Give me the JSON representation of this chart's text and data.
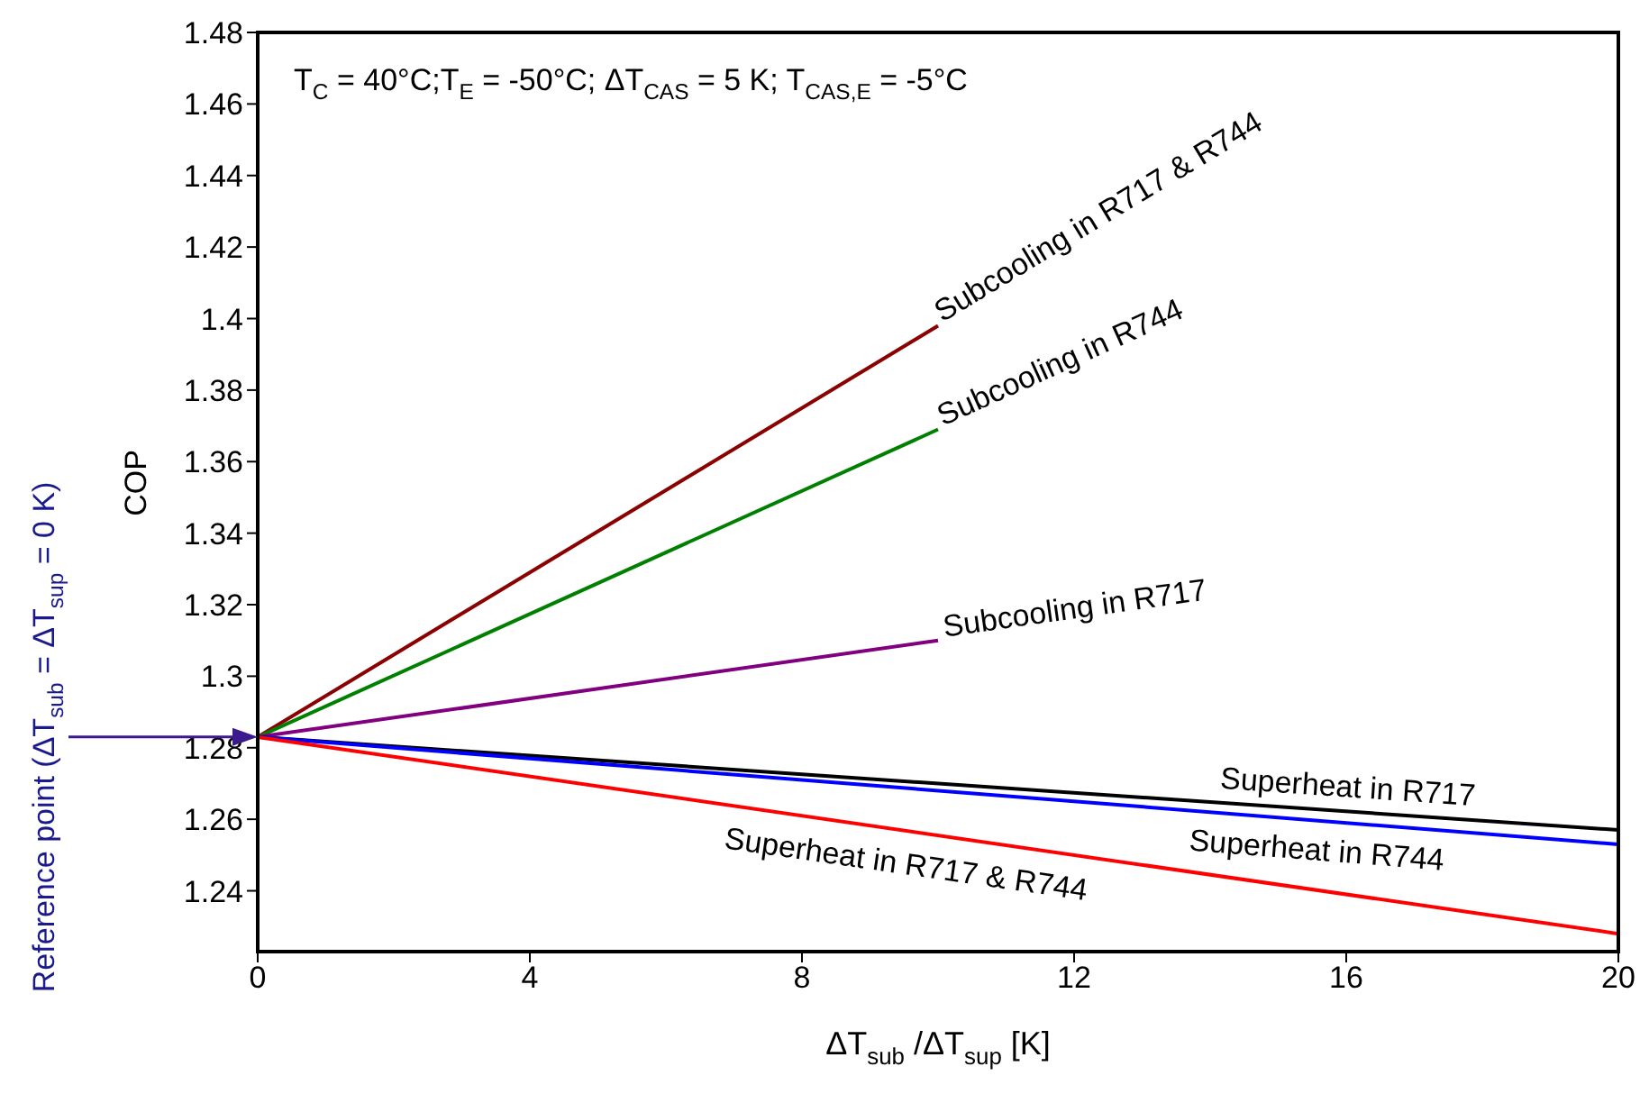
{
  "chart_data": {
    "type": "line",
    "xlabel": "ΔT$_{sub}$ /ΔT$_{sup}$ [K]",
    "ylabel": "COP",
    "annotations": [
      "T$_{C}$ = 40°C;T$_{E}$ = -50°C; ΔT$_{CAS}$ = 5 K; T$_{CAS,E}$ = -5°C",
      "Reference point (ΔT$_{sub}$ = ΔT$_{sup}$ = 0 K)"
    ],
    "xlim": [
      0,
      20
    ],
    "xticks": [
      0,
      4,
      8,
      12,
      16,
      20
    ],
    "ylim": [
      1.223,
      1.48
    ],
    "yticks": [
      1.24,
      1.26,
      1.28,
      1.3,
      1.32,
      1.34,
      1.36,
      1.38,
      1.4,
      1.42,
      1.44,
      1.46,
      1.48
    ],
    "series": [
      {
        "name": "Subcooling in R717 & R744",
        "color": "#8b0000",
        "x": [
          0,
          10
        ],
        "values": [
          1.283,
          1.398
        ]
      },
      {
        "name": "Subcooling in R744",
        "color": "#008000",
        "x": [
          0,
          10
        ],
        "values": [
          1.283,
          1.369
        ]
      },
      {
        "name": "Subcooling in R717",
        "color": "#800080",
        "x": [
          0,
          10
        ],
        "values": [
          1.283,
          1.31
        ]
      },
      {
        "name": "Superheat in R717",
        "color": "#000000",
        "x": [
          0,
          20
        ],
        "values": [
          1.283,
          1.257
        ]
      },
      {
        "name": "Superheat in R744",
        "color": "#0000ff",
        "x": [
          0,
          20
        ],
        "values": [
          1.283,
          1.253
        ]
      },
      {
        "name": "Superheat in R717 & R744",
        "color": "#ff0000",
        "x": [
          0,
          20
        ],
        "values": [
          1.283,
          1.228
        ]
      }
    ]
  }
}
